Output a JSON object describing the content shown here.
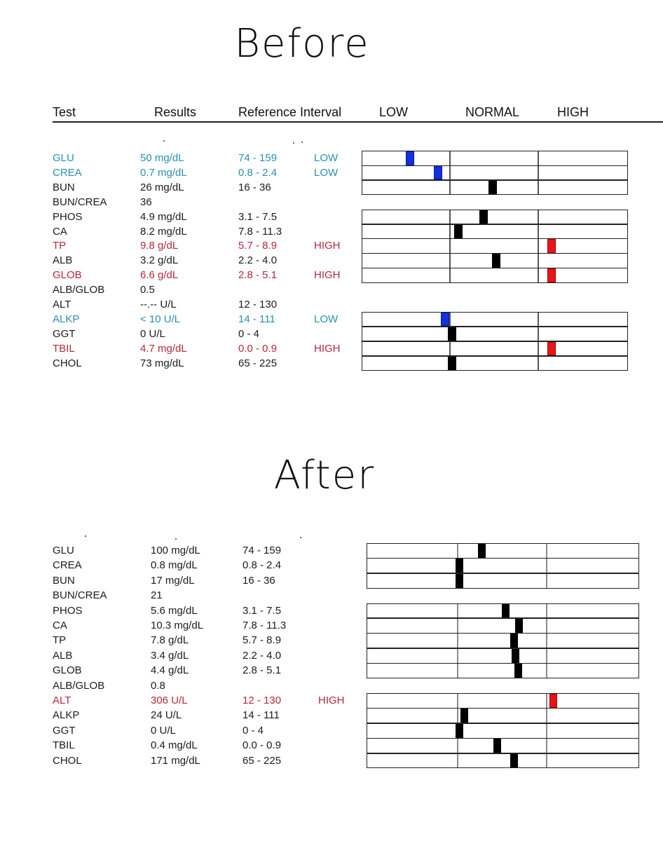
{
  "titles": {
    "before": "Before",
    "after": "After"
  },
  "headers": {
    "test": "Test",
    "results": "Results",
    "reference": "Reference Interval",
    "low": "LOW",
    "normal": "NORMAL",
    "high": "HIGH"
  },
  "colors": {
    "low": "#2a8fb0",
    "high": "#b3283a",
    "marker_low": "#1230e0",
    "marker_high": "#e8141c",
    "marker_normal": "#000000"
  },
  "before": {
    "rows": [
      {
        "test": "GLU",
        "result": "50 mg/dL",
        "ref": "74 - 159",
        "flag": "LOW",
        "status": "low",
        "marker": 0.55,
        "bar": true
      },
      {
        "test": "CREA",
        "result": "0.7 mg/dL",
        "ref": "0.8 - 2.4",
        "flag": "LOW",
        "status": "low",
        "marker": 0.87,
        "bar": true
      },
      {
        "test": "BUN",
        "result": "26 mg/dL",
        "ref": "16 - 36",
        "flag": "",
        "status": "normal",
        "marker": 1.49,
        "bar": true
      },
      {
        "test": "BUN/CREA",
        "result": "36",
        "ref": "",
        "flag": "",
        "status": "normal",
        "marker": null,
        "bar": false
      },
      {
        "test": "PHOS",
        "result": "4.9 mg/dL",
        "ref": "3.1 - 7.5",
        "flag": "",
        "status": "normal",
        "marker": 1.39,
        "bar": true
      },
      {
        "test": "CA",
        "result": "8.2 mg/dL",
        "ref": "7.8 - 11.3",
        "flag": "",
        "status": "normal",
        "marker": 1.1,
        "bar": true
      },
      {
        "test": "TP",
        "result": "9.8 g/dL",
        "ref": "5.7 - 8.9",
        "flag": "HIGH",
        "status": "high",
        "marker": 2.15,
        "bar": true
      },
      {
        "test": "ALB",
        "result": "3.2 g/dL",
        "ref": "2.2 - 4.0",
        "flag": "",
        "status": "normal",
        "marker": 1.53,
        "bar": true
      },
      {
        "test": "GLOB",
        "result": "6.6 g/dL",
        "ref": "2.8 - 5.1",
        "flag": "HIGH",
        "status": "high",
        "marker": 2.15,
        "bar": true
      },
      {
        "test": "ALB/GLOB",
        "result": "0.5",
        "ref": "",
        "flag": "",
        "status": "normal",
        "marker": null,
        "bar": false
      },
      {
        "test": "ALT",
        "result": "--.-- U/L",
        "ref": "12 - 130",
        "flag": "",
        "status": "normal",
        "marker": null,
        "bar": false
      },
      {
        "test": "ALKP",
        "result": "< 10 U/L",
        "ref": "14 - 111",
        "flag": "LOW",
        "status": "low",
        "marker": 0.95,
        "bar": true
      },
      {
        "test": "GGT",
        "result": "0 U/L",
        "ref": "0 - 4",
        "flag": "",
        "status": "normal",
        "marker": 1.03,
        "bar": true
      },
      {
        "test": "TBIL",
        "result": "4.7 mg/dL",
        "ref": "0.0 - 0.9",
        "flag": "HIGH",
        "status": "high",
        "marker": 2.15,
        "bar": true
      },
      {
        "test": "CHOL",
        "result": "73 mg/dL",
        "ref": "65 - 225",
        "flag": "",
        "status": "normal",
        "marker": 1.03,
        "bar": true
      }
    ]
  },
  "after": {
    "rows": [
      {
        "test": "GLU",
        "result": "100 mg/dL",
        "ref": "74 - 159",
        "flag": "",
        "status": "normal",
        "marker": 1.28,
        "bar": true
      },
      {
        "test": "CREA",
        "result": "0.8 mg/dL",
        "ref": "0.8 - 2.4",
        "flag": "",
        "status": "normal",
        "marker": 1.03,
        "bar": true
      },
      {
        "test": "BUN",
        "result": "17 mg/dL",
        "ref": "16 - 36",
        "flag": "",
        "status": "normal",
        "marker": 1.03,
        "bar": true
      },
      {
        "test": "BUN/CREA",
        "result": "21",
        "ref": "",
        "flag": "",
        "status": "normal",
        "marker": null,
        "bar": false
      },
      {
        "test": "PHOS",
        "result": "5.6 mg/dL",
        "ref": "3.1 - 7.5",
        "flag": "",
        "status": "normal",
        "marker": 1.55,
        "bar": true
      },
      {
        "test": "CA",
        "result": "10.3 mg/dL",
        "ref": "7.8 - 11.3",
        "flag": "",
        "status": "normal",
        "marker": 1.7,
        "bar": true
      },
      {
        "test": "TP",
        "result": "7.8 g/dL",
        "ref": "5.7 - 8.9",
        "flag": "",
        "status": "normal",
        "marker": 1.64,
        "bar": true
      },
      {
        "test": "ALB",
        "result": "3.4 g/dL",
        "ref": "2.2 - 4.0",
        "flag": "",
        "status": "normal",
        "marker": 1.66,
        "bar": true
      },
      {
        "test": "GLOB",
        "result": "4.4 g/dL",
        "ref": "2.8 - 5.1",
        "flag": "",
        "status": "normal",
        "marker": 1.69,
        "bar": true
      },
      {
        "test": "ALB/GLOB",
        "result": "0.8",
        "ref": "",
        "flag": "",
        "status": "normal",
        "marker": null,
        "bar": false
      },
      {
        "test": "ALT",
        "result": "306 U/L",
        "ref": "12 - 130",
        "flag": "HIGH",
        "status": "high",
        "marker": 2.08,
        "bar": true
      },
      {
        "test": "ALKP",
        "result": "24 U/L",
        "ref": "14 - 111",
        "flag": "",
        "status": "normal",
        "marker": 1.08,
        "bar": true
      },
      {
        "test": "GGT",
        "result": "0 U/L",
        "ref": "0 - 4",
        "flag": "",
        "status": "normal",
        "marker": 1.03,
        "bar": true
      },
      {
        "test": "TBIL",
        "result": "0.4 mg/dL",
        "ref": "0.0 - 0.9",
        "flag": "",
        "status": "normal",
        "marker": 1.45,
        "bar": true
      },
      {
        "test": "CHOL",
        "result": "171 mg/dL",
        "ref": "65 - 225",
        "flag": "",
        "status": "normal",
        "marker": 1.64,
        "bar": true
      }
    ]
  }
}
